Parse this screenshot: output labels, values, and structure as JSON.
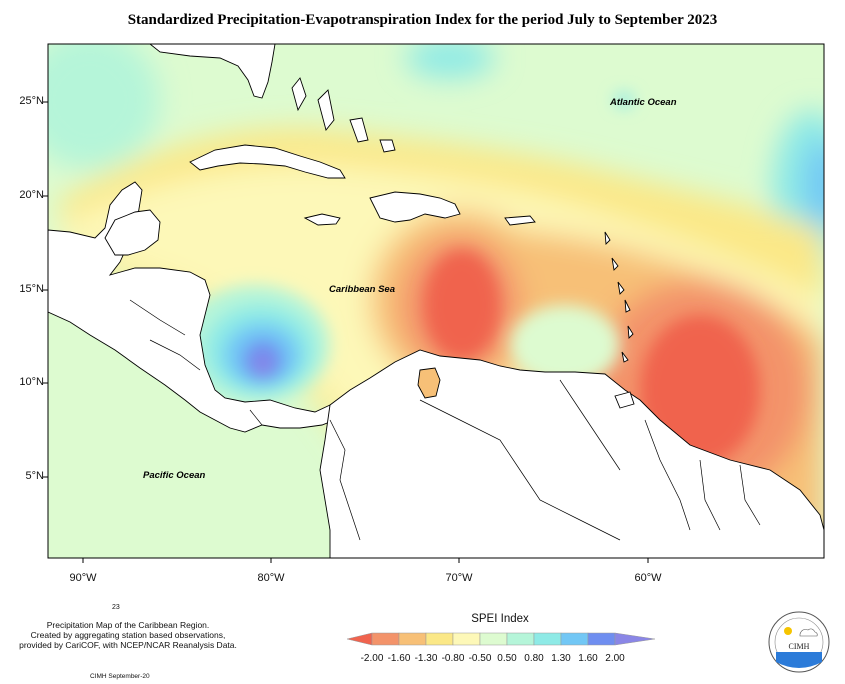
{
  "title": "Standardized Precipitation-Evapotranspiration Index for the period July to September 2023",
  "lat_labels": [
    "25°N",
    "20°N",
    "15°N",
    "10°N",
    "5°N"
  ],
  "lon_labels": [
    "90°W",
    "80°W",
    "70°W",
    "60°W"
  ],
  "map_labels": {
    "atlantic": "Atlantic Ocean",
    "caribbean": "Caribbean Sea",
    "pacific": "Pacific Ocean"
  },
  "note": {
    "number": "23",
    "line1": "Precipitation Map of the Caribbean Region.",
    "line2": "Created by aggregating station based observations,",
    "line3": "provided by CariCOF, with NCEP/NCAR Reanalysis Data."
  },
  "footer": "CIMH September-20",
  "legend": {
    "title": "SPEI Index",
    "labels": [
      "-2.00",
      "-1.60",
      "-1.30",
      "-0.80",
      "-0.50",
      "0.50",
      "0.80",
      "1.30",
      "1.60",
      "2.00"
    ],
    "colors": [
      "#f0634e",
      "#f3936a",
      "#f7c077",
      "#fbe887",
      "#fdf8b8",
      "#ddfbd0",
      "#b5f5d9",
      "#8eeae6",
      "#72c7f5",
      "#6f8ef0",
      "#8a86e6"
    ]
  },
  "logo": {
    "text": "CIMH"
  }
}
